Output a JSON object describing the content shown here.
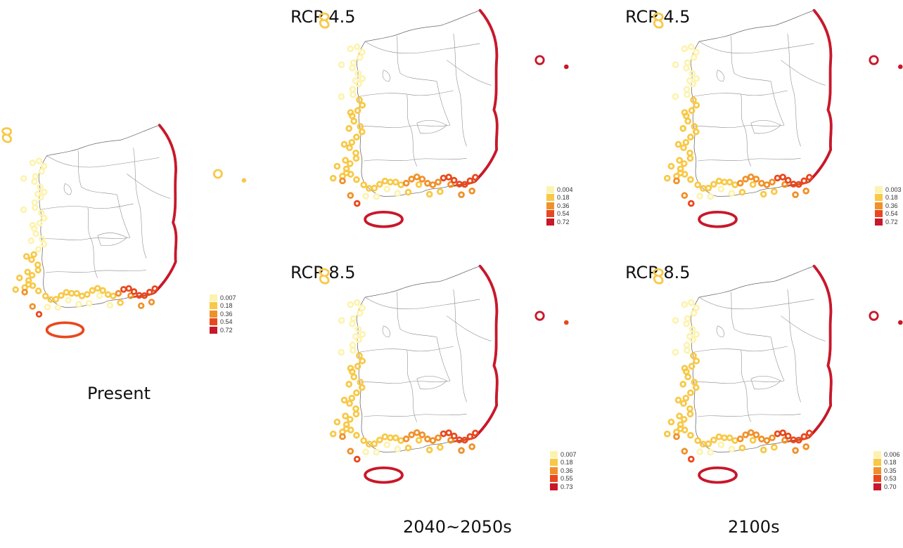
{
  "colors": [
    "#fdf3b0",
    "#f8c846",
    "#f0902a",
    "#e8481e",
    "#c8182a"
  ],
  "panels": [
    {
      "key": "present",
      "label": "",
      "legend": [
        "0.007",
        "0.18",
        "0.36",
        "0.54",
        "0.72"
      ]
    },
    {
      "key": "rcp45_2040",
      "label": "RCP 4.5",
      "legend": [
        "0.004",
        "0.18",
        "0.36",
        "0.54",
        "0.72"
      ]
    },
    {
      "key": "rcp45_2100",
      "label": "RCP 4.5",
      "legend": [
        "0.003",
        "0.18",
        "0.36",
        "0.54",
        "0.72"
      ]
    },
    {
      "key": "rcp85_2040",
      "label": "RCP 8.5",
      "legend": [
        "0.007",
        "0.18",
        "0.36",
        "0.55",
        "0.73"
      ]
    },
    {
      "key": "rcp85_2100",
      "label": "RCP 8.5",
      "legend": [
        "0.006",
        "0.18",
        "0.35",
        "0.53",
        "0.70"
      ]
    }
  ],
  "captions": {
    "present": "Present",
    "mid": "2040~2050s",
    "end": "2100s"
  }
}
